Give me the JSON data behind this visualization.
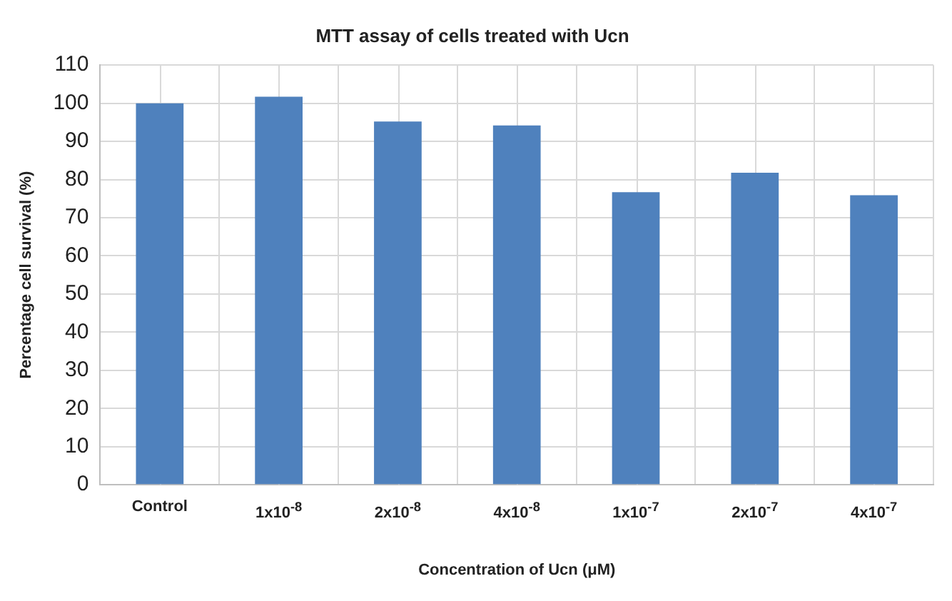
{
  "chart_data": {
    "type": "bar",
    "title": "MTT assay of cells treated with Ucn",
    "xlabel": "Concentration of Ucn (μM)",
    "ylabel": "Percentage cell survival (%)",
    "categories": [
      "Control",
      "1x10$^{-8}$",
      "2x10$^{-8}$",
      "4x10$^{-8}$",
      "1x10$^{-7}$",
      "2x10$^{-7}$",
      "4x10$^{-7}$"
    ],
    "values": [
      100,
      101.7,
      95.2,
      94.2,
      76.7,
      81.8,
      75.9
    ],
    "color": "#4f81bd",
    "ylim": [
      0,
      110
    ],
    "yticks": [
      0,
      10,
      20,
      30,
      40,
      50,
      60,
      70,
      80,
      90,
      100,
      110
    ],
    "grid": true,
    "legend": false
  }
}
